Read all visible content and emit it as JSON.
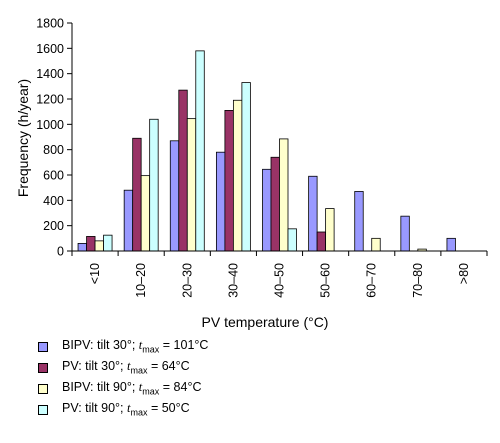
{
  "chart_data": {
    "type": "bar",
    "xlabel": "PV temperature (°C)",
    "ylabel": "Frequency (h/year)",
    "ylim": [
      0,
      1800
    ],
    "yticks": [
      0,
      200,
      400,
      600,
      800,
      1000,
      1200,
      1400,
      1600,
      1800
    ],
    "categories": [
      "<10",
      "10–20",
      "20–30",
      "30–40",
      "40–50",
      "50–60",
      "60–70",
      "70–80",
      ">80"
    ],
    "series": [
      {
        "name": "BIPV: tilt 30°; tmax = 101°C",
        "label_prefix": "BIPV: tilt 30°; ",
        "tmax": "101°C",
        "color": "#9999ff",
        "values": [
          60,
          480,
          870,
          780,
          645,
          590,
          470,
          275,
          100
        ]
      },
      {
        "name": "PV: tilt 30°; tmax = 64°C",
        "label_prefix": "PV: tilt 30°; ",
        "tmax": "64°C",
        "color": "#993366",
        "values": [
          115,
          890,
          1270,
          1110,
          740,
          150,
          0,
          0,
          0
        ]
      },
      {
        "name": "BIPV: tilt 90°; tmax = 84°C",
        "label_prefix": "BIPV: tilt 90°; ",
        "tmax": "84°C",
        "color": "#ffffcc",
        "values": [
          80,
          595,
          1045,
          1190,
          885,
          335,
          100,
          15,
          0
        ]
      },
      {
        "name": "PV: tilt 90°; tmax = 50°C",
        "label_prefix": "PV: tilt 90°; ",
        "tmax": "50°C",
        "color": "#ccffff",
        "values": [
          125,
          1040,
          1580,
          1330,
          175,
          0,
          0,
          0,
          0
        ]
      }
    ],
    "grid": false,
    "legend_position": "bottom-left"
  },
  "legend_tmax_symbol": "t",
  "legend_tmax_sub": "max"
}
